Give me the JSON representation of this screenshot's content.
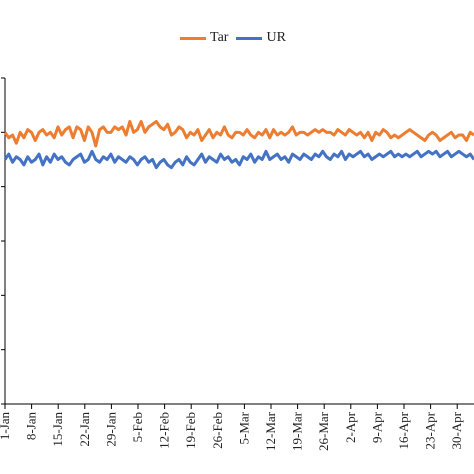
{
  "chart_data": {
    "type": "line",
    "title": "",
    "xlabel": "",
    "ylabel": "",
    "x_tick_labels": [
      "1-Jan",
      "8-Jan",
      "15-Jan",
      "22-Jan",
      "29-Jan",
      "5-Feb",
      "12-Feb",
      "19-Feb",
      "26-Feb",
      "5-Mar",
      "12-Mar",
      "19-Mar",
      "26-Mar",
      "2-Apr",
      "9-Apr",
      "16-Apr",
      "23-Apr",
      "30-Apr"
    ],
    "x_range": [
      "1-Jan",
      "5-May"
    ],
    "ylim": [
      0,
      6
    ],
    "grid": false,
    "legend_position": "top-center",
    "series": [
      {
        "name": "Tar",
        "color": "#ED7D31",
        "values": [
          5.0,
          4.9,
          4.95,
          4.8,
          5.0,
          4.9,
          5.05,
          5.0,
          4.85,
          5.0,
          5.05,
          4.95,
          5.0,
          4.9,
          5.1,
          4.95,
          5.05,
          5.1,
          4.9,
          5.1,
          5.05,
          4.85,
          5.1,
          5.0,
          4.75,
          5.05,
          5.1,
          5.0,
          5.0,
          5.1,
          5.05,
          5.1,
          4.95,
          5.2,
          5.0,
          5.05,
          5.2,
          5.0,
          5.1,
          5.15,
          5.2,
          5.1,
          5.05,
          5.15,
          4.95,
          5.0,
          5.1,
          5.05,
          4.9,
          5.0,
          4.95,
          5.05,
          4.85,
          4.95,
          5.05,
          4.9,
          5.0,
          4.95,
          5.1,
          4.95,
          4.9,
          5.0,
          5.0,
          4.95,
          5.05,
          4.95,
          4.9,
          5.0,
          4.95,
          5.05,
          4.9,
          5.05,
          4.95,
          5.0,
          4.95,
          5.0,
          5.1,
          4.95,
          5.0,
          5.0,
          4.95,
          5.0,
          5.05,
          5.0,
          5.05,
          5.0,
          5.0,
          4.95,
          5.05,
          5.0,
          4.95,
          5.05,
          5.0,
          4.95,
          5.0,
          4.9,
          5.0,
          4.85,
          5.0,
          4.95,
          5.05,
          5.0,
          4.9,
          4.95,
          4.9,
          4.95,
          5.0,
          5.05,
          5.0,
          4.95,
          4.9,
          4.85,
          4.95,
          5.0,
          4.95,
          4.85,
          4.9,
          4.95,
          5.0,
          4.9,
          4.95,
          4.95,
          4.85,
          5.0,
          4.95
        ],
        "label_note": ""
      },
      {
        "name": "UR",
        "color": "#4472C4",
        "values": [
          4.5,
          4.6,
          4.45,
          4.55,
          4.5,
          4.4,
          4.55,
          4.45,
          4.5,
          4.6,
          4.4,
          4.55,
          4.45,
          4.6,
          4.5,
          4.55,
          4.45,
          4.4,
          4.5,
          4.55,
          4.6,
          4.45,
          4.5,
          4.65,
          4.5,
          4.45,
          4.55,
          4.5,
          4.6,
          4.45,
          4.55,
          4.5,
          4.45,
          4.55,
          4.5,
          4.4,
          4.5,
          4.55,
          4.45,
          4.5,
          4.35,
          4.45,
          4.5,
          4.4,
          4.35,
          4.45,
          4.5,
          4.4,
          4.55,
          4.45,
          4.4,
          4.5,
          4.6,
          4.45,
          4.55,
          4.5,
          4.45,
          4.6,
          4.5,
          4.55,
          4.45,
          4.5,
          4.4,
          4.55,
          4.5,
          4.6,
          4.45,
          4.55,
          4.5,
          4.65,
          4.5,
          4.55,
          4.6,
          4.5,
          4.55,
          4.45,
          4.6,
          4.55,
          4.5,
          4.6,
          4.55,
          4.5,
          4.6,
          4.55,
          4.65,
          4.55,
          4.5,
          4.6,
          4.55,
          4.65,
          4.5,
          4.6,
          4.55,
          4.6,
          4.65,
          4.55,
          4.6,
          4.5,
          4.55,
          4.6,
          4.55,
          4.6,
          4.65,
          4.55,
          4.6,
          4.55,
          4.6,
          4.55,
          4.6,
          4.65,
          4.55,
          4.6,
          4.65,
          4.6,
          4.65,
          4.55,
          4.6,
          4.65,
          4.55,
          4.6,
          4.65,
          4.6,
          4.55,
          4.6,
          4.5
        ]
      }
    ]
  }
}
